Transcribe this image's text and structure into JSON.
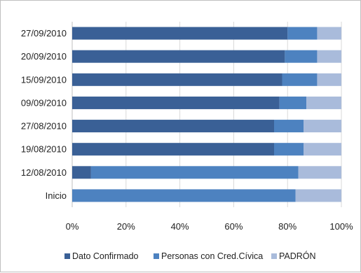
{
  "chart_data": {
    "type": "bar",
    "orientation": "horizontal",
    "stacked": "percent",
    "categories": [
      "27/09/2010",
      "20/09/2010",
      "15/09/2010",
      "09/09/2010",
      "27/08/2010",
      "19/08/2010",
      "12/08/2010",
      "Inicio"
    ],
    "series": [
      {
        "name": "Dato Confirmado",
        "color": "#3a6096",
        "values": [
          80,
          79,
          78,
          77,
          75,
          75,
          7,
          0
        ]
      },
      {
        "name": "Personas con Cred.Cívica",
        "color": "#4d82c0",
        "values": [
          11,
          12,
          13,
          10,
          11,
          11,
          77,
          83
        ]
      },
      {
        "name": "PADRÓN",
        "color": "#a9bbdb",
        "values": [
          9,
          9,
          9,
          13,
          14,
          14,
          16,
          17
        ]
      }
    ],
    "xticks": [
      "0%",
      "20%",
      "40%",
      "60%",
      "80%",
      "100%"
    ],
    "xlim": [
      0,
      100
    ],
    "grid": true,
    "legend": "bottom",
    "title": "",
    "xlabel": "",
    "ylabel": ""
  }
}
